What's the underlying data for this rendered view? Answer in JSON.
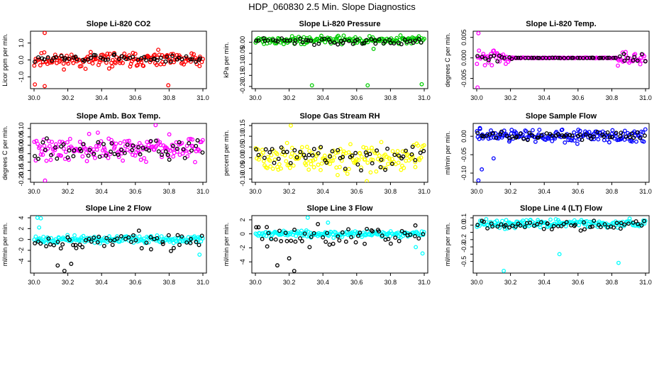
{
  "figure_title": "HDP_060830  2.5 Min. Slope Diagnostics",
  "x_ticks": [
    "30.0",
    "30.2",
    "30.4",
    "30.6",
    "30.8",
    "31.0"
  ],
  "chart_data": [
    {
      "type": "scatter",
      "title": "Slope Li-820 CO2",
      "ylabel": "Licor ppm per min.",
      "xlim": [
        30.0,
        31.0
      ],
      "ylim": [
        -1.7,
        1.7
      ],
      "yticks": [
        -1.0,
        0.0,
        1.0
      ],
      "ytick_labels": [
        "-1.0",
        "0.0",
        "1.0"
      ],
      "color": "#ff0000",
      "series": [
        {
          "name": "color",
          "center": 0.0,
          "spread": 0.3,
          "count": 170,
          "seed": 11,
          "outliers": [
            [
              30.063,
              1.6
            ],
            [
              30.063,
              -1.55
            ],
            [
              30.005,
              -1.45
            ],
            [
              30.795,
              -1.5
            ]
          ]
        },
        {
          "name": "black",
          "center": 0.1,
          "spread": 0.15,
          "count": 55,
          "seed": 12,
          "outliers": []
        }
      ]
    },
    {
      "type": "scatter",
      "title": "Slope Li-820 Pressure",
      "ylabel": "kPa per min.",
      "xlim": [
        30.0,
        31.0
      ],
      "ylim": [
        -0.21,
        0.05
      ],
      "yticks": [
        -0.2,
        -0.15,
        -0.1,
        -0.05,
        0.0
      ],
      "ytick_labels": [
        "-0.20",
        "-0.15",
        "-0.10",
        "-0.05",
        "0.00"
      ],
      "color": "#00cc00",
      "series": [
        {
          "name": "color",
          "center": 0.01,
          "spread": 0.012,
          "count": 170,
          "seed": 21,
          "outliers": [
            [
              30.335,
              -0.195
            ],
            [
              30.665,
              -0.195
            ],
            [
              30.985,
              -0.19
            ],
            [
              30.7,
              -0.03
            ]
          ]
        },
        {
          "name": "black",
          "center": 0.005,
          "spread": 0.01,
          "count": 55,
          "seed": 22,
          "outliers": []
        }
      ]
    },
    {
      "type": "scatter",
      "title": "Slope Li-820 Temp.",
      "ylabel": "degrees C per min.",
      "xlim": [
        30.0,
        31.0
      ],
      "ylim": [
        -0.0075,
        0.0065
      ],
      "yticks": [
        -0.005,
        0.0,
        0.005
      ],
      "ytick_labels": [
        "-0.005",
        "0.000",
        "0.005"
      ],
      "color": "#ff00ff",
      "series": [
        {
          "name": "color",
          "center": 0.0,
          "spread": 0.0012,
          "count": 170,
          "seed": 31,
          "mode": "funnel",
          "outliers": [
            [
              30.005,
              -0.0072
            ],
            [
              30.01,
              0.006
            ]
          ]
        },
        {
          "name": "black",
          "center": 0.0,
          "spread": 0.0008,
          "count": 55,
          "seed": 32,
          "mode": "funnel",
          "outliers": []
        }
      ]
    },
    {
      "type": "scatter",
      "title": "Slope Amb. Box Temp.",
      "ylabel": "degrees C per min.",
      "xlim": [
        30.0,
        31.0
      ],
      "ylim": [
        -0.22,
        0.13
      ],
      "yticks": [
        -0.2,
        -0.15,
        -0.1,
        -0.05,
        0.0,
        0.05,
        0.1
      ],
      "ytick_labels": [
        "-0.20",
        "-0.15",
        "-0.10",
        "-0.05",
        "0.00",
        "0.05",
        "0.10"
      ],
      "color": "#ff00ff",
      "series": [
        {
          "name": "color",
          "center": -0.02,
          "spread": 0.05,
          "count": 170,
          "seed": 41,
          "outliers": [
            [
              30.065,
              -0.21
            ],
            [
              30.72,
              0.12
            ]
          ]
        },
        {
          "name": "black",
          "center": -0.03,
          "spread": 0.04,
          "count": 55,
          "seed": 42,
          "outliers": []
        }
      ]
    },
    {
      "type": "scatter",
      "title": "Slope Gas Stream RH",
      "ylabel": "percent per min.",
      "xlim": [
        30.0,
        31.0
      ],
      "ylim": [
        -0.115,
        0.16
      ],
      "yticks": [
        -0.1,
        -0.05,
        0.0,
        0.05,
        0.1,
        0.15
      ],
      "ytick_labels": [
        "-0.10",
        "-0.05",
        "0.00",
        "0.05",
        "0.10",
        "0.15"
      ],
      "color": "#ffff00",
      "series": [
        {
          "name": "color",
          "center": 0.0,
          "spread": 0.045,
          "count": 170,
          "seed": 51,
          "outliers": [
            [
              30.21,
              0.15
            ],
            [
              30.66,
              -0.11
            ]
          ]
        },
        {
          "name": "black",
          "center": 0.01,
          "spread": 0.04,
          "count": 55,
          "seed": 52,
          "outliers": []
        }
      ]
    },
    {
      "type": "scatter",
      "title": "Slope Sample Flow",
      "ylabel": "ml/min per min.",
      "xlim": [
        30.0,
        31.0
      ],
      "ylim": [
        -0.125,
        0.035
      ],
      "yticks": [
        -0.1,
        -0.05,
        0.0
      ],
      "ytick_labels": [
        "-0.10",
        "-0.05",
        "0.00"
      ],
      "color": "#0000ff",
      "series": [
        {
          "name": "color",
          "center": 0.0,
          "spread": 0.012,
          "count": 170,
          "seed": 61,
          "outliers": [
            [
              30.01,
              -0.12
            ],
            [
              30.02,
              0.02
            ],
            [
              30.03,
              -0.09
            ],
            [
              30.1,
              -0.06
            ]
          ]
        },
        {
          "name": "black",
          "center": 0.002,
          "spread": 0.008,
          "count": 55,
          "seed": 62,
          "outliers": []
        }
      ]
    },
    {
      "type": "scatter",
      "title": "Slope Line 2 Flow",
      "ylabel": "ml/min per min.",
      "xlim": [
        30.0,
        31.0
      ],
      "ylim": [
        -6.2,
        4.4
      ],
      "yticks": [
        -4,
        -2,
        0,
        2,
        4
      ],
      "ytick_labels": [
        "-4",
        "-2",
        "0",
        "2",
        "4"
      ],
      "color": "#00ffff",
      "series": [
        {
          "name": "color",
          "center": 0.0,
          "spread": 0.45,
          "count": 170,
          "seed": 71,
          "outliers": [
            [
              30.02,
              4.0
            ],
            [
              30.03,
              2.2
            ],
            [
              30.04,
              3.9
            ],
            [
              30.98,
              -2.8
            ]
          ]
        },
        {
          "name": "black",
          "center": -0.3,
          "spread": 1.2,
          "count": 55,
          "seed": 72,
          "outliers": [
            [
              30.14,
              -4.8
            ],
            [
              30.18,
              -5.8
            ],
            [
              30.22,
              -4.5
            ],
            [
              30.25,
              -1.6
            ]
          ]
        }
      ]
    },
    {
      "type": "scatter",
      "title": "Slope Line 3 Flow",
      "ylabel": "ml/min per min.",
      "xlim": [
        30.0,
        31.0
      ],
      "ylim": [
        -5.6,
        2.6
      ],
      "yticks": [
        -4,
        -2,
        0,
        2
      ],
      "ytick_labels": [
        "-4",
        "-2",
        "0",
        "2"
      ],
      "color": "#00ffff",
      "series": [
        {
          "name": "color",
          "center": 0.0,
          "spread": 0.35,
          "count": 170,
          "seed": 81,
          "outliers": [
            [
              30.31,
              2.3
            ],
            [
              30.43,
              1.6
            ],
            [
              30.99,
              -2.8
            ],
            [
              30.95,
              -1.9
            ]
          ]
        },
        {
          "name": "black",
          "center": -0.3,
          "spread": 1.0,
          "count": 55,
          "seed": 82,
          "outliers": [
            [
              30.13,
              -4.5
            ],
            [
              30.23,
              -5.3
            ],
            [
              30.2,
              -3.5
            ],
            [
              30.07,
              -1.8
            ]
          ]
        }
      ]
    },
    {
      "type": "scatter",
      "title": "Slope Line 4 (LT) Flow",
      "ylabel": "ml/min per min.",
      "xlim": [
        30.0,
        31.0
      ],
      "ylim": [
        -0.66,
        0.13
      ],
      "yticks": [
        -0.5,
        -0.4,
        -0.3,
        -0.2,
        -0.1,
        0.0,
        0.1
      ],
      "ytick_labels": [
        "-0.5",
        "",
        "-0.3",
        "-0.2",
        "",
        "0.0",
        "0.1"
      ],
      "color": "#00ffff",
      "series": [
        {
          "name": "color",
          "center": 0.02,
          "spread": 0.04,
          "count": 170,
          "seed": 91,
          "outliers": [
            [
              30.16,
              -0.63
            ],
            [
              30.49,
              -0.4
            ],
            [
              30.84,
              -0.52
            ]
          ]
        },
        {
          "name": "black",
          "center": 0.0,
          "spread": 0.05,
          "count": 55,
          "seed": 92,
          "outliers": []
        }
      ]
    }
  ]
}
